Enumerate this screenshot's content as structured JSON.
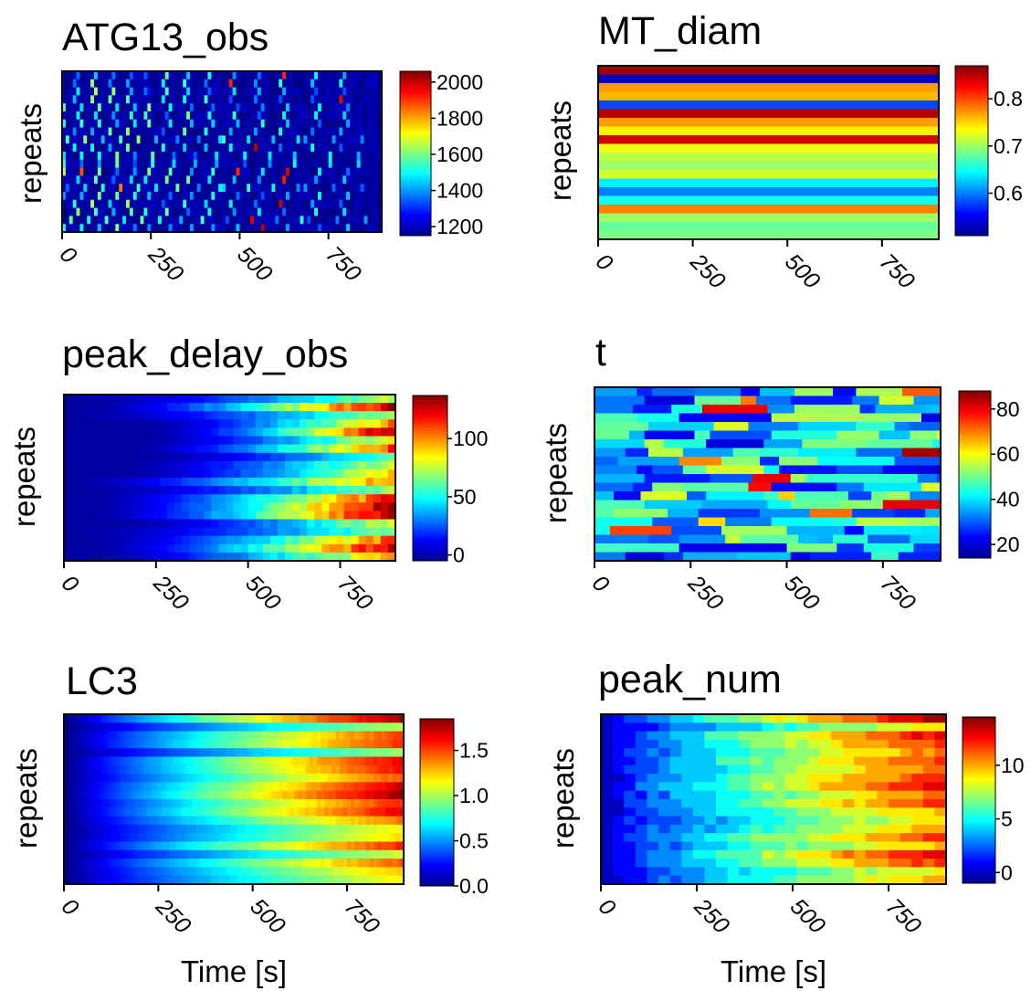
{
  "chart_data": [
    {
      "type": "heatmap",
      "title": "ATG13_obs",
      "ylabel": "repeats",
      "xlabel": "",
      "xlim": [
        0,
        900
      ],
      "x_ticks": [
        "0",
        "250",
        "500",
        "750"
      ],
      "x_tick_values": [
        0,
        250,
        500,
        750
      ],
      "colorbar_ticks": [
        "1200",
        "1400",
        "1600",
        "1800",
        "2000"
      ],
      "colorbar_tick_values": [
        1200,
        1400,
        1600,
        1800,
        2000
      ],
      "value_range": [
        1150,
        2060
      ],
      "colormap": "jet",
      "pattern": "sparse_pulses",
      "rows": 20,
      "cols": 90,
      "seed": 11
    },
    {
      "type": "heatmap",
      "title": "MT_diam",
      "ylabel": "repeats",
      "xlabel": "",
      "xlim": [
        0,
        900
      ],
      "x_ticks": [
        "0",
        "250",
        "500",
        "750"
      ],
      "x_tick_values": [
        0,
        250,
        500,
        750
      ],
      "colorbar_ticks": [
        "0.6",
        "0.7",
        "0.8"
      ],
      "colorbar_tick_values": [
        0.6,
        0.7,
        0.8
      ],
      "value_range": [
        0.51,
        0.87
      ],
      "colormap": "jet",
      "pattern": "constant_rows",
      "row_values": [
        0.86,
        0.53,
        0.77,
        0.76,
        0.58,
        0.85,
        0.77,
        0.74,
        0.84,
        0.73,
        0.71,
        0.7,
        0.72,
        0.64,
        0.6,
        0.65,
        0.78,
        0.7,
        0.68,
        0.69
      ]
    },
    {
      "type": "heatmap",
      "title": "peak_delay_obs",
      "ylabel": "repeats",
      "xlabel": "",
      "xlim": [
        0,
        900
      ],
      "x_ticks": [
        "0",
        "250",
        "500",
        "750"
      ],
      "x_tick_values": [
        0,
        250,
        500,
        750
      ],
      "colorbar_ticks": [
        "0",
        "50",
        "100"
      ],
      "colorbar_tick_values": [
        0,
        50,
        100
      ],
      "value_range": [
        -5,
        137
      ],
      "colormap": "jet",
      "pattern": "increasing",
      "rows": 20,
      "cols": 45,
      "row_max": [
        75,
        130,
        70,
        100,
        137,
        85,
        110,
        60,
        80,
        90,
        105,
        70,
        120,
        137,
        137,
        80,
        65,
        110,
        130,
        95
      ],
      "seed": 23
    },
    {
      "type": "heatmap",
      "title": "t",
      "ylabel": "repeats",
      "xlabel": "",
      "xlim": [
        0,
        900
      ],
      "x_ticks": [
        "0",
        "250",
        "500",
        "750"
      ],
      "x_tick_values": [
        0,
        250,
        500,
        750
      ],
      "colorbar_ticks": [
        "20",
        "40",
        "60",
        "80"
      ],
      "colorbar_tick_values": [
        20,
        40,
        60,
        80
      ],
      "value_range": [
        14,
        88
      ],
      "colormap": "jet",
      "pattern": "segments",
      "rows": 20,
      "cols": 90,
      "seed": 37
    },
    {
      "type": "heatmap",
      "title": "LC3",
      "ylabel": "repeats",
      "xlabel": "Time [s]",
      "xlim": [
        0,
        900
      ],
      "x_ticks": [
        "0",
        "250",
        "500",
        "750"
      ],
      "x_tick_values": [
        0,
        250,
        500,
        750
      ],
      "colorbar_ticks": [
        "0.0",
        "0.5",
        "1.0",
        "1.5"
      ],
      "colorbar_tick_values": [
        0,
        0.5,
        1,
        1.5
      ],
      "value_range": [
        0,
        1.85
      ],
      "colormap": "jet",
      "pattern": "smooth_increasing",
      "rows": 20,
      "cols": 90,
      "row_max": [
        1.85,
        1.05,
        1.55,
        1.6,
        1.0,
        1.7,
        1.65,
        1.5,
        1.75,
        1.85,
        1.6,
        1.7,
        1.45,
        1.2,
        1.25,
        1.6,
        1.1,
        1.5,
        1.3,
        1.2
      ],
      "seed": 41
    },
    {
      "type": "heatmap",
      "title": "peak_num",
      "ylabel": "repeats",
      "xlabel": "Time [s]",
      "xlim": [
        0,
        900
      ],
      "x_ticks": [
        "0",
        "250",
        "500",
        "750"
      ],
      "x_tick_values": [
        0,
        250,
        500,
        750
      ],
      "colorbar_ticks": [
        "0",
        "5",
        "10"
      ],
      "colorbar_tick_values": [
        0,
        5,
        10
      ],
      "value_range": [
        -1,
        14.5
      ],
      "colormap": "jet",
      "pattern": "stepped_increasing",
      "rows": 20,
      "cols": 30,
      "row_max": [
        14,
        9,
        13,
        12,
        11,
        12,
        11,
        12,
        13,
        11,
        12,
        10,
        9,
        10,
        12,
        10,
        13,
        12,
        9,
        10
      ],
      "seed": 53
    }
  ]
}
